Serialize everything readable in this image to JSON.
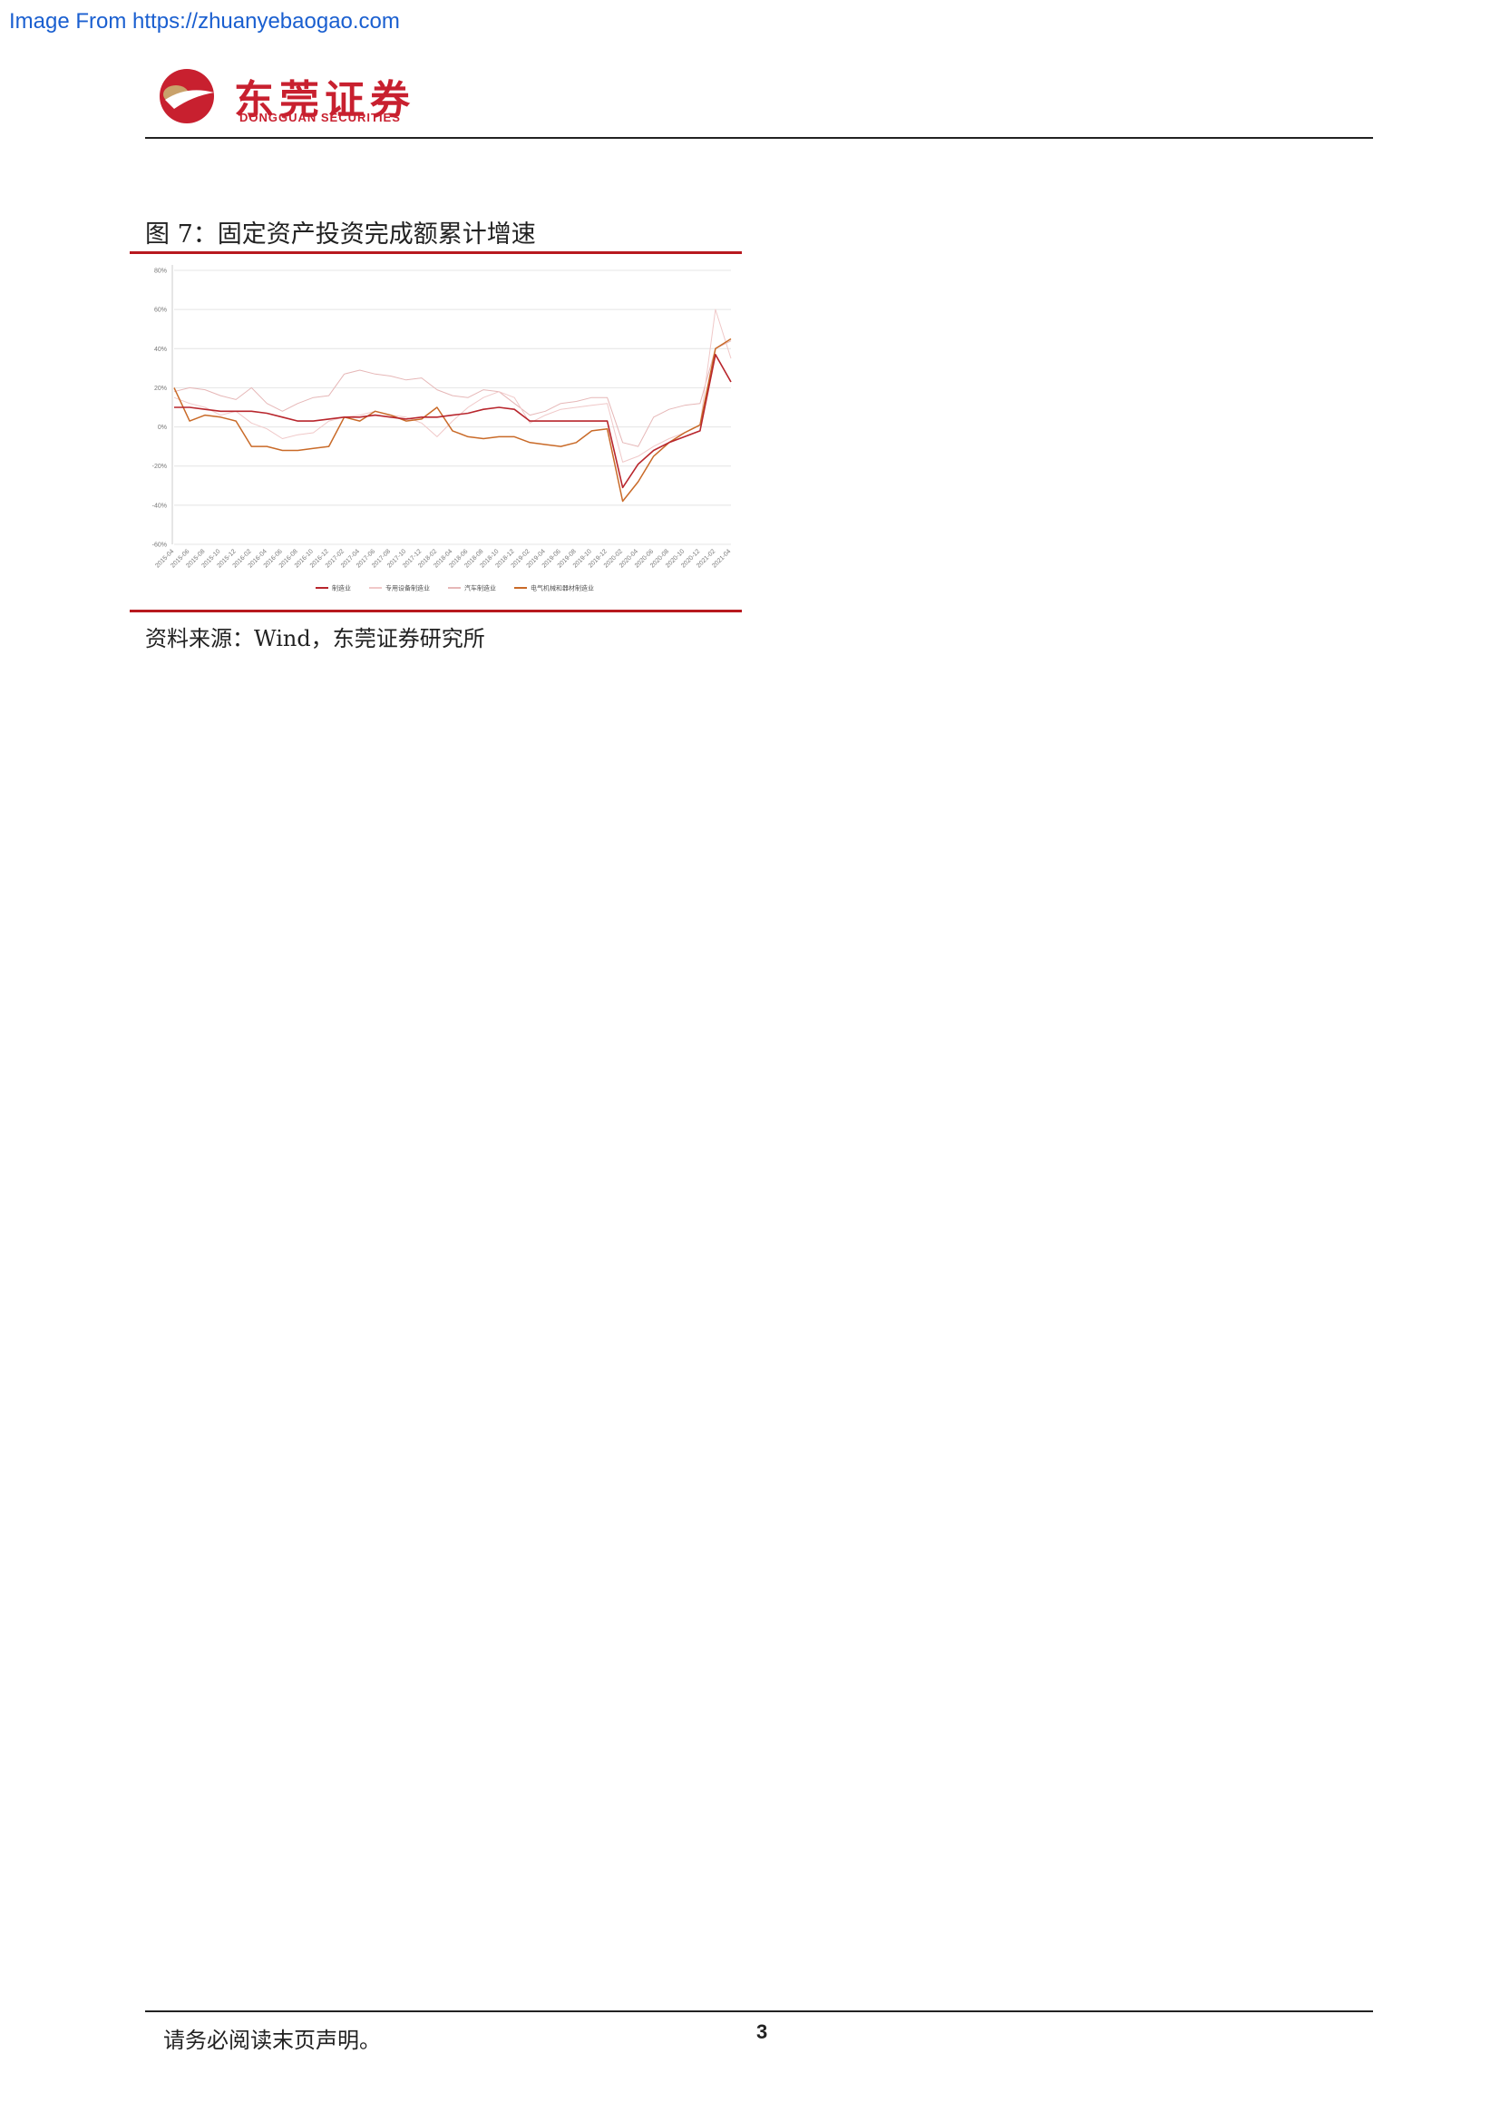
{
  "watermark": "Image From https://zhuanyebaogao.com",
  "logo": {
    "name_cn": "东莞证券",
    "name_en": "DONGGUAN SECURITIES",
    "colors": {
      "brand_red": "#c8202f",
      "brand_gold": "#c9a26b"
    }
  },
  "figure": {
    "title": "图 7：固定资产投资完成额累计增速",
    "source": "资料来源：Wind，东莞证券研究所"
  },
  "footer": {
    "disclaimer": "请务必阅读末页声明。",
    "page_number": "3"
  },
  "chart_data": {
    "type": "line",
    "title": "",
    "xlabel": "",
    "ylabel": "",
    "ylim": [
      -60,
      80
    ],
    "yticks": [
      "-60%",
      "-40%",
      "-20%",
      "0%",
      "20%",
      "40%",
      "60%",
      "80%"
    ],
    "ytick_values": [
      -60,
      -40,
      -20,
      0,
      20,
      40,
      60,
      80
    ],
    "grid": "horizontal",
    "legend_position": "bottom",
    "xtick_labels": [
      "2015-04",
      "2015-06",
      "2015-08",
      "2015-10",
      "2015-12",
      "2016-02",
      "2016-04",
      "2016-06",
      "2016-08",
      "2016-10",
      "2016-12",
      "2017-02",
      "2017-04",
      "2017-06",
      "2017-08",
      "2017-10",
      "2017-12",
      "2018-02",
      "2018-04",
      "2018-06",
      "2018-08",
      "2018-10",
      "2018-12",
      "2019-02",
      "2019-04",
      "2019-06",
      "2019-08",
      "2019-10",
      "2019-12",
      "2020-02",
      "2020-04",
      "2020-06",
      "2020-08",
      "2020-10",
      "2020-12",
      "2021-02",
      "2021-04"
    ],
    "series": [
      {
        "name": "制造业",
        "color": "#b8262d",
        "width": 1.6,
        "values": [
          10,
          10,
          9,
          8,
          8,
          8,
          7,
          5,
          3,
          3,
          4,
          5,
          5,
          6,
          5,
          4,
          5,
          5,
          6,
          7,
          9,
          10,
          9,
          3,
          3,
          3,
          3,
          3,
          3,
          -31,
          -19,
          -12,
          -8,
          -5,
          -2,
          37,
          23
        ]
      },
      {
        "name": "专用设备制造业",
        "color": "#f0c8c8",
        "width": 1.0,
        "values": [
          15,
          12,
          10,
          6,
          8,
          2,
          -1,
          -6,
          -4,
          -3,
          3,
          5,
          6,
          8,
          6,
          5,
          2,
          -5,
          3,
          10,
          15,
          18,
          15,
          2,
          6,
          9,
          10,
          11,
          12,
          -18,
          -15,
          -10,
          -6,
          -3,
          1,
          60,
          35
        ]
      },
      {
        "name": "汽车制造业",
        "color": "#e6b7b7",
        "width": 1.0,
        "values": [
          18,
          20,
          19,
          16,
          14,
          20,
          12,
          8,
          12,
          15,
          16,
          27,
          29,
          27,
          26,
          24,
          25,
          19,
          16,
          15,
          19,
          18,
          12,
          6,
          8,
          12,
          13,
          15,
          15,
          -8,
          -10,
          5,
          9,
          11,
          12,
          40,
          44
        ]
      },
      {
        "name": "电气机械和器材制造业",
        "color": "#c96a28",
        "width": 1.5,
        "values": [
          20,
          3,
          6,
          5,
          3,
          -10,
          -10,
          -12,
          -12,
          -11,
          -10,
          5,
          3,
          8,
          6,
          3,
          4,
          10,
          -2,
          -5,
          -6,
          -5,
          -5,
          -8,
          -9,
          -10,
          -8,
          -2,
          -1,
          -38,
          -28,
          -15,
          -8,
          -3,
          1,
          40,
          45
        ]
      }
    ]
  }
}
